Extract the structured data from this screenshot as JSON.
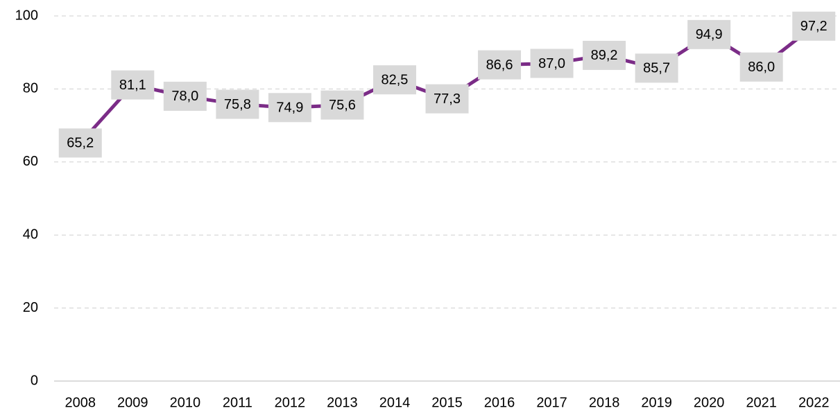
{
  "chart_data": {
    "type": "line",
    "categories": [
      "2008",
      "2009",
      "2010",
      "2011",
      "2012",
      "2013",
      "2014",
      "2015",
      "2016",
      "2017",
      "2018",
      "2019",
      "2020",
      "2021",
      "2022"
    ],
    "values": [
      65.2,
      81.1,
      78.0,
      75.8,
      74.9,
      75.6,
      82.5,
      77.3,
      86.6,
      87.0,
      89.2,
      85.7,
      94.9,
      86.0,
      97.2
    ],
    "value_labels": [
      "65,2",
      "81,1",
      "78,0",
      "75,8",
      "74,9",
      "75,6",
      "82,5",
      "77,3",
      "86,6",
      "87,0",
      "89,2",
      "85,7",
      "94,9",
      "86,0",
      "97,2"
    ],
    "color": "#7b2c87",
    "ylim": [
      0,
      100
    ],
    "yticks": [
      0,
      20,
      40,
      60,
      80,
      100
    ],
    "grid": true
  }
}
